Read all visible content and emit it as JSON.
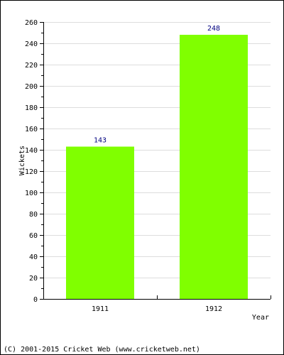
{
  "chart_data": {
    "type": "bar",
    "categories": [
      "1911",
      "1912"
    ],
    "values": [
      143,
      248
    ],
    "data_labels": [
      "143",
      "248"
    ],
    "xlabel": "Year",
    "ylabel": "Wickets",
    "ylim": [
      0,
      260
    ],
    "yticks": [
      0,
      20,
      40,
      60,
      80,
      100,
      120,
      140,
      160,
      180,
      200,
      220,
      240,
      260
    ],
    "grid": true,
    "legend": "none",
    "bar_color": "#80ff00",
    "label_color": "#000080"
  },
  "footer": {
    "copyright": "(C) 2001-2015 Cricket Web (www.cricketweb.net)"
  }
}
